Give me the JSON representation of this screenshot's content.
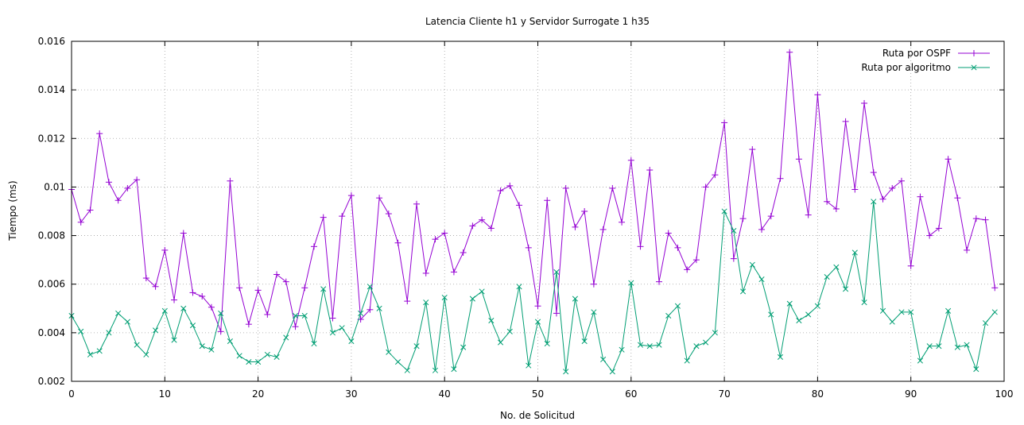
{
  "chart_data": {
    "type": "line",
    "title": "Latencia Cliente h1 y Servidor Surrogate 1 h35",
    "xlabel": "No. de Solicitud",
    "ylabel": "Tiempo (ms)",
    "xlim": [
      0,
      100
    ],
    "ylim": [
      0.002,
      0.016
    ],
    "x_ticks": [
      "0",
      "10",
      "20",
      "30",
      "40",
      "50",
      "60",
      "70",
      "80",
      "90",
      "100"
    ],
    "y_ticks": [
      "0.002",
      "0.004",
      "0.006",
      "0.008",
      "0.01",
      "0.012",
      "0.014",
      "0.016"
    ],
    "grid": true,
    "legend_position": "top-right",
    "series": [
      {
        "name": "Ruta por OSPF",
        "color": "#9400d3",
        "marker": "plus",
        "values": [
          0.0099,
          0.00855,
          0.00905,
          0.0122,
          0.0102,
          0.00945,
          0.00995,
          0.0103,
          0.00625,
          0.0059,
          0.0074,
          0.00535,
          0.0081,
          0.00565,
          0.0055,
          0.00505,
          0.00405,
          0.01025,
          0.00585,
          0.00435,
          0.00575,
          0.00475,
          0.0064,
          0.0061,
          0.00425,
          0.00585,
          0.00755,
          0.00875,
          0.0046,
          0.0088,
          0.00965,
          0.00455,
          0.00495,
          0.00955,
          0.0089,
          0.0077,
          0.0053,
          0.0093,
          0.00645,
          0.00785,
          0.0081,
          0.0065,
          0.0073,
          0.0084,
          0.00865,
          0.0083,
          0.00985,
          0.01005,
          0.00925,
          0.0075,
          0.0051,
          0.00945,
          0.0048,
          0.00995,
          0.00835,
          0.009,
          0.006,
          0.00825,
          0.00995,
          0.00855,
          0.0111,
          0.00755,
          0.0107,
          0.0061,
          0.0081,
          0.0075,
          0.0066,
          0.007,
          0.01,
          0.0105,
          0.01265,
          0.00705,
          0.0087,
          0.01155,
          0.00825,
          0.0088,
          0.01035,
          0.01555,
          0.01115,
          0.00885,
          0.0138,
          0.0094,
          0.0091,
          0.0127,
          0.0099,
          0.01345,
          0.0106,
          0.0095,
          0.00995,
          0.01025,
          0.00675,
          0.0096,
          0.008,
          0.0083,
          0.01115,
          0.00955,
          0.0074,
          0.0087,
          0.00865,
          0.00585
        ]
      },
      {
        "name": "Ruta por algoritmo",
        "color": "#009e73",
        "marker": "cross",
        "values": [
          0.0047,
          0.00405,
          0.0031,
          0.00325,
          0.004,
          0.0048,
          0.00445,
          0.0035,
          0.0031,
          0.0041,
          0.0049,
          0.0037,
          0.005,
          0.0043,
          0.00345,
          0.0033,
          0.0048,
          0.00365,
          0.00305,
          0.0028,
          0.0028,
          0.0031,
          0.003,
          0.0038,
          0.0047,
          0.0047,
          0.00355,
          0.0058,
          0.004,
          0.0042,
          0.00365,
          0.0048,
          0.0059,
          0.005,
          0.0032,
          0.0028,
          0.00245,
          0.00345,
          0.00525,
          0.00245,
          0.00545,
          0.0025,
          0.0034,
          0.0054,
          0.0057,
          0.0045,
          0.0036,
          0.00405,
          0.0059,
          0.00265,
          0.00445,
          0.00355,
          0.0065,
          0.0024,
          0.0054,
          0.00365,
          0.00485,
          0.0029,
          0.0024,
          0.0033,
          0.00605,
          0.0035,
          0.00345,
          0.0035,
          0.0047,
          0.0051,
          0.00285,
          0.00345,
          0.0036,
          0.004,
          0.009,
          0.0082,
          0.0057,
          0.0068,
          0.0062,
          0.00475,
          0.003,
          0.0052,
          0.0045,
          0.00475,
          0.0051,
          0.0063,
          0.0067,
          0.0058,
          0.0073,
          0.00525,
          0.0094,
          0.0049,
          0.00445,
          0.00485,
          0.00485,
          0.00285,
          0.00345,
          0.00345,
          0.0049,
          0.0034,
          0.0035,
          0.0025,
          0.0044,
          0.00485
        ]
      }
    ]
  }
}
